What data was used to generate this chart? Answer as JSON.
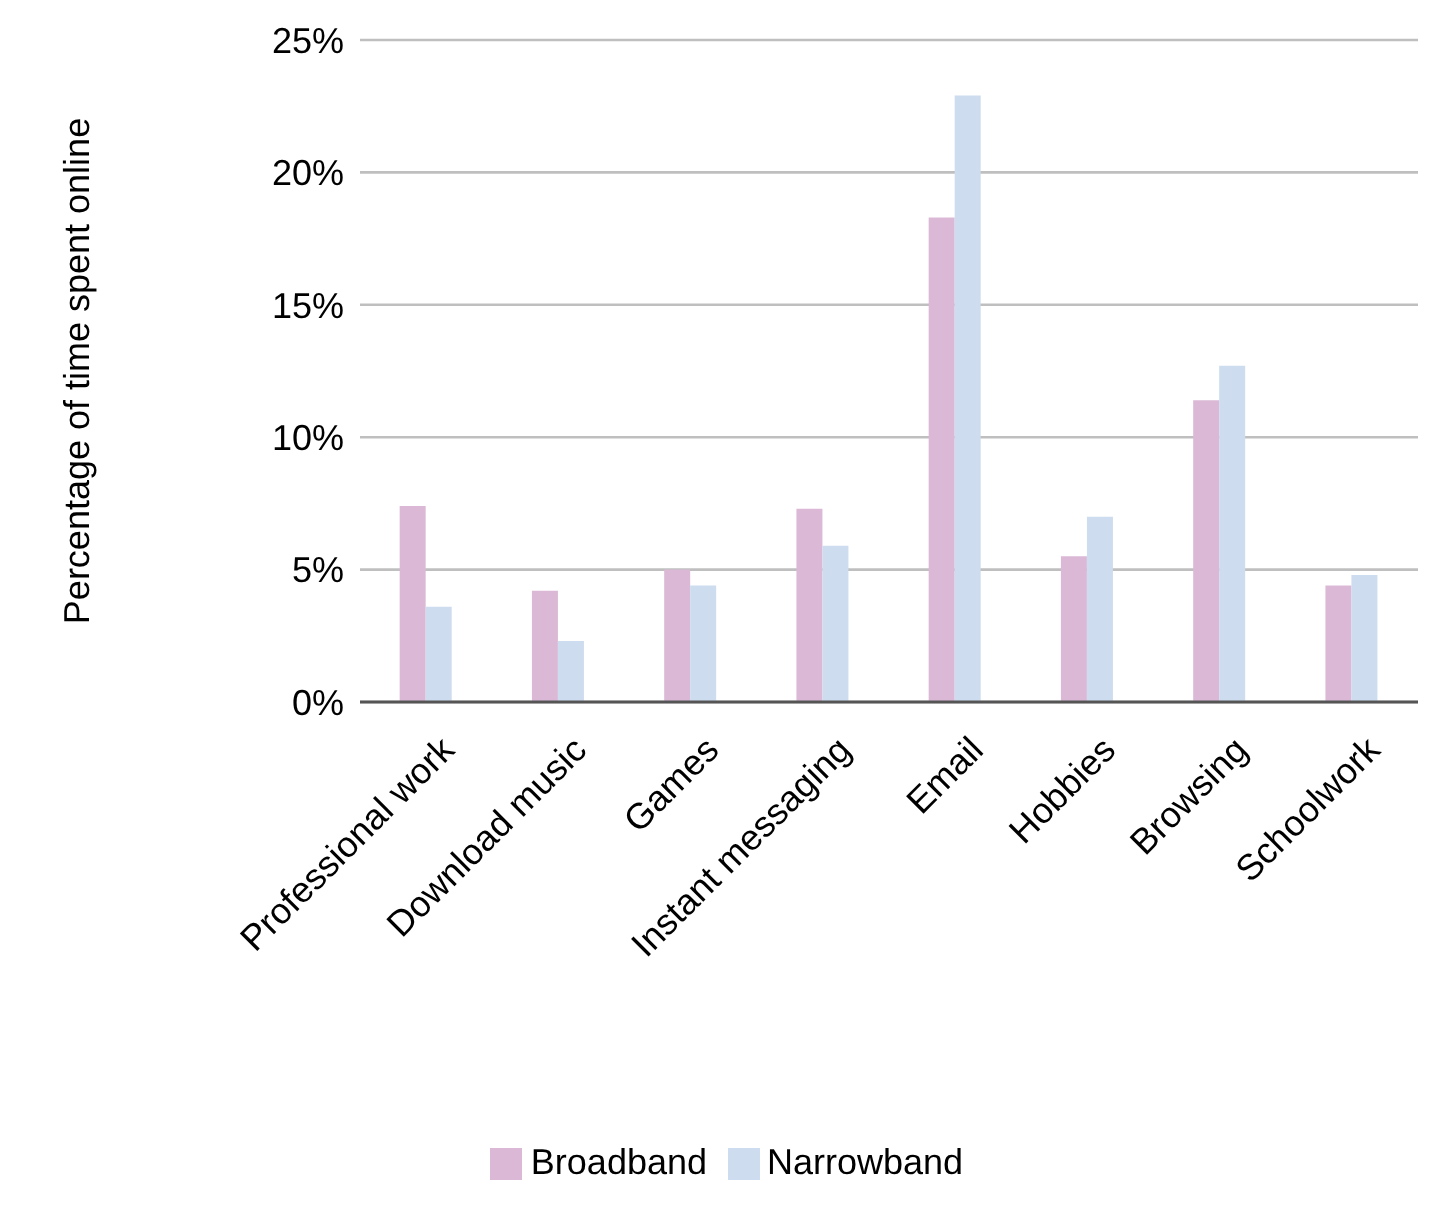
{
  "chart_data": {
    "type": "bar",
    "ylabel": "Percentage of time spent online",
    "categories": [
      "Professional work",
      "Download music",
      "Games",
      "Instant messaging",
      "Email",
      "Hobbies",
      "Browsing",
      "Schoolwork"
    ],
    "series": [
      {
        "name": "Broadband",
        "color": "#dbb9d6",
        "values": [
          7.4,
          4.2,
          5.0,
          7.3,
          18.3,
          5.5,
          11.4,
          4.4
        ]
      },
      {
        "name": "Narrowband",
        "color": "#cddcee",
        "values": [
          3.6,
          2.3,
          4.4,
          5.9,
          22.9,
          7.0,
          12.7,
          4.8
        ]
      }
    ],
    "ylim": [
      0,
      25
    ],
    "yticks": [
      {
        "value": 0,
        "label": "0%"
      },
      {
        "value": 5,
        "label": "5%"
      },
      {
        "value": 10,
        "label": "10%"
      },
      {
        "value": 15,
        "label": "15%"
      },
      {
        "value": 20,
        "label": "20%"
      },
      {
        "value": 25,
        "label": "25%"
      }
    ],
    "grid": "y",
    "legend": "bottom"
  }
}
